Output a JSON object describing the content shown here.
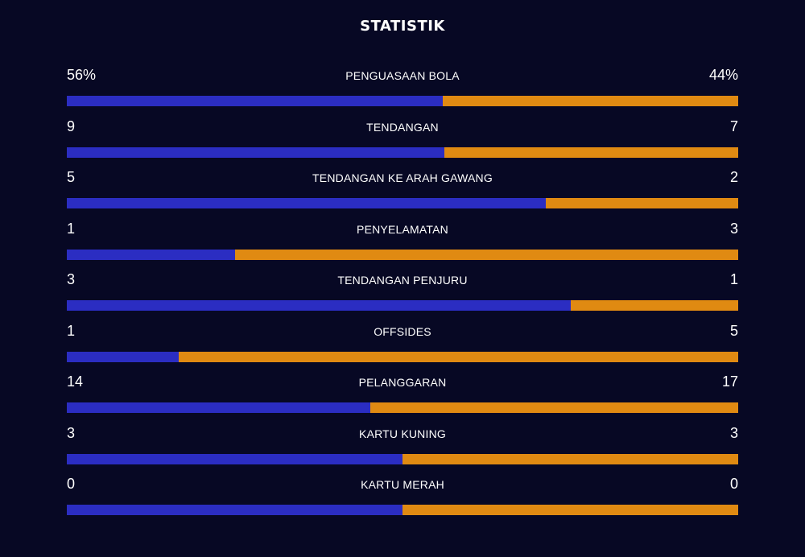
{
  "title": "STATISTIK",
  "colors": {
    "background": "#070824",
    "home": "#2b2dc2",
    "away": "#e08a12"
  },
  "stats": [
    {
      "label": "PENGUASAAN BOLA",
      "home": "56%",
      "away": "44%",
      "home_share": 0.56
    },
    {
      "label": "TENDANGAN",
      "home": "9",
      "away": "7",
      "home_share": 0.5625
    },
    {
      "label": "TENDANGAN KE ARAH GAWANG",
      "home": "5",
      "away": "2",
      "home_share": 0.714
    },
    {
      "label": "PENYELAMATAN",
      "home": "1",
      "away": "3",
      "home_share": 0.25
    },
    {
      "label": "TENDANGAN PENJURU",
      "home": "3",
      "away": "1",
      "home_share": 0.75
    },
    {
      "label": "OFFSIDES",
      "home": "1",
      "away": "5",
      "home_share": 0.1667
    },
    {
      "label": "PELANGGARAN",
      "home": "14",
      "away": "17",
      "home_share": 0.4516
    },
    {
      "label": "KARTU KUNING",
      "home": "3",
      "away": "3",
      "home_share": 0.5
    },
    {
      "label": "KARTU MERAH",
      "home": "0",
      "away": "0",
      "home_share": 0.5
    }
  ]
}
